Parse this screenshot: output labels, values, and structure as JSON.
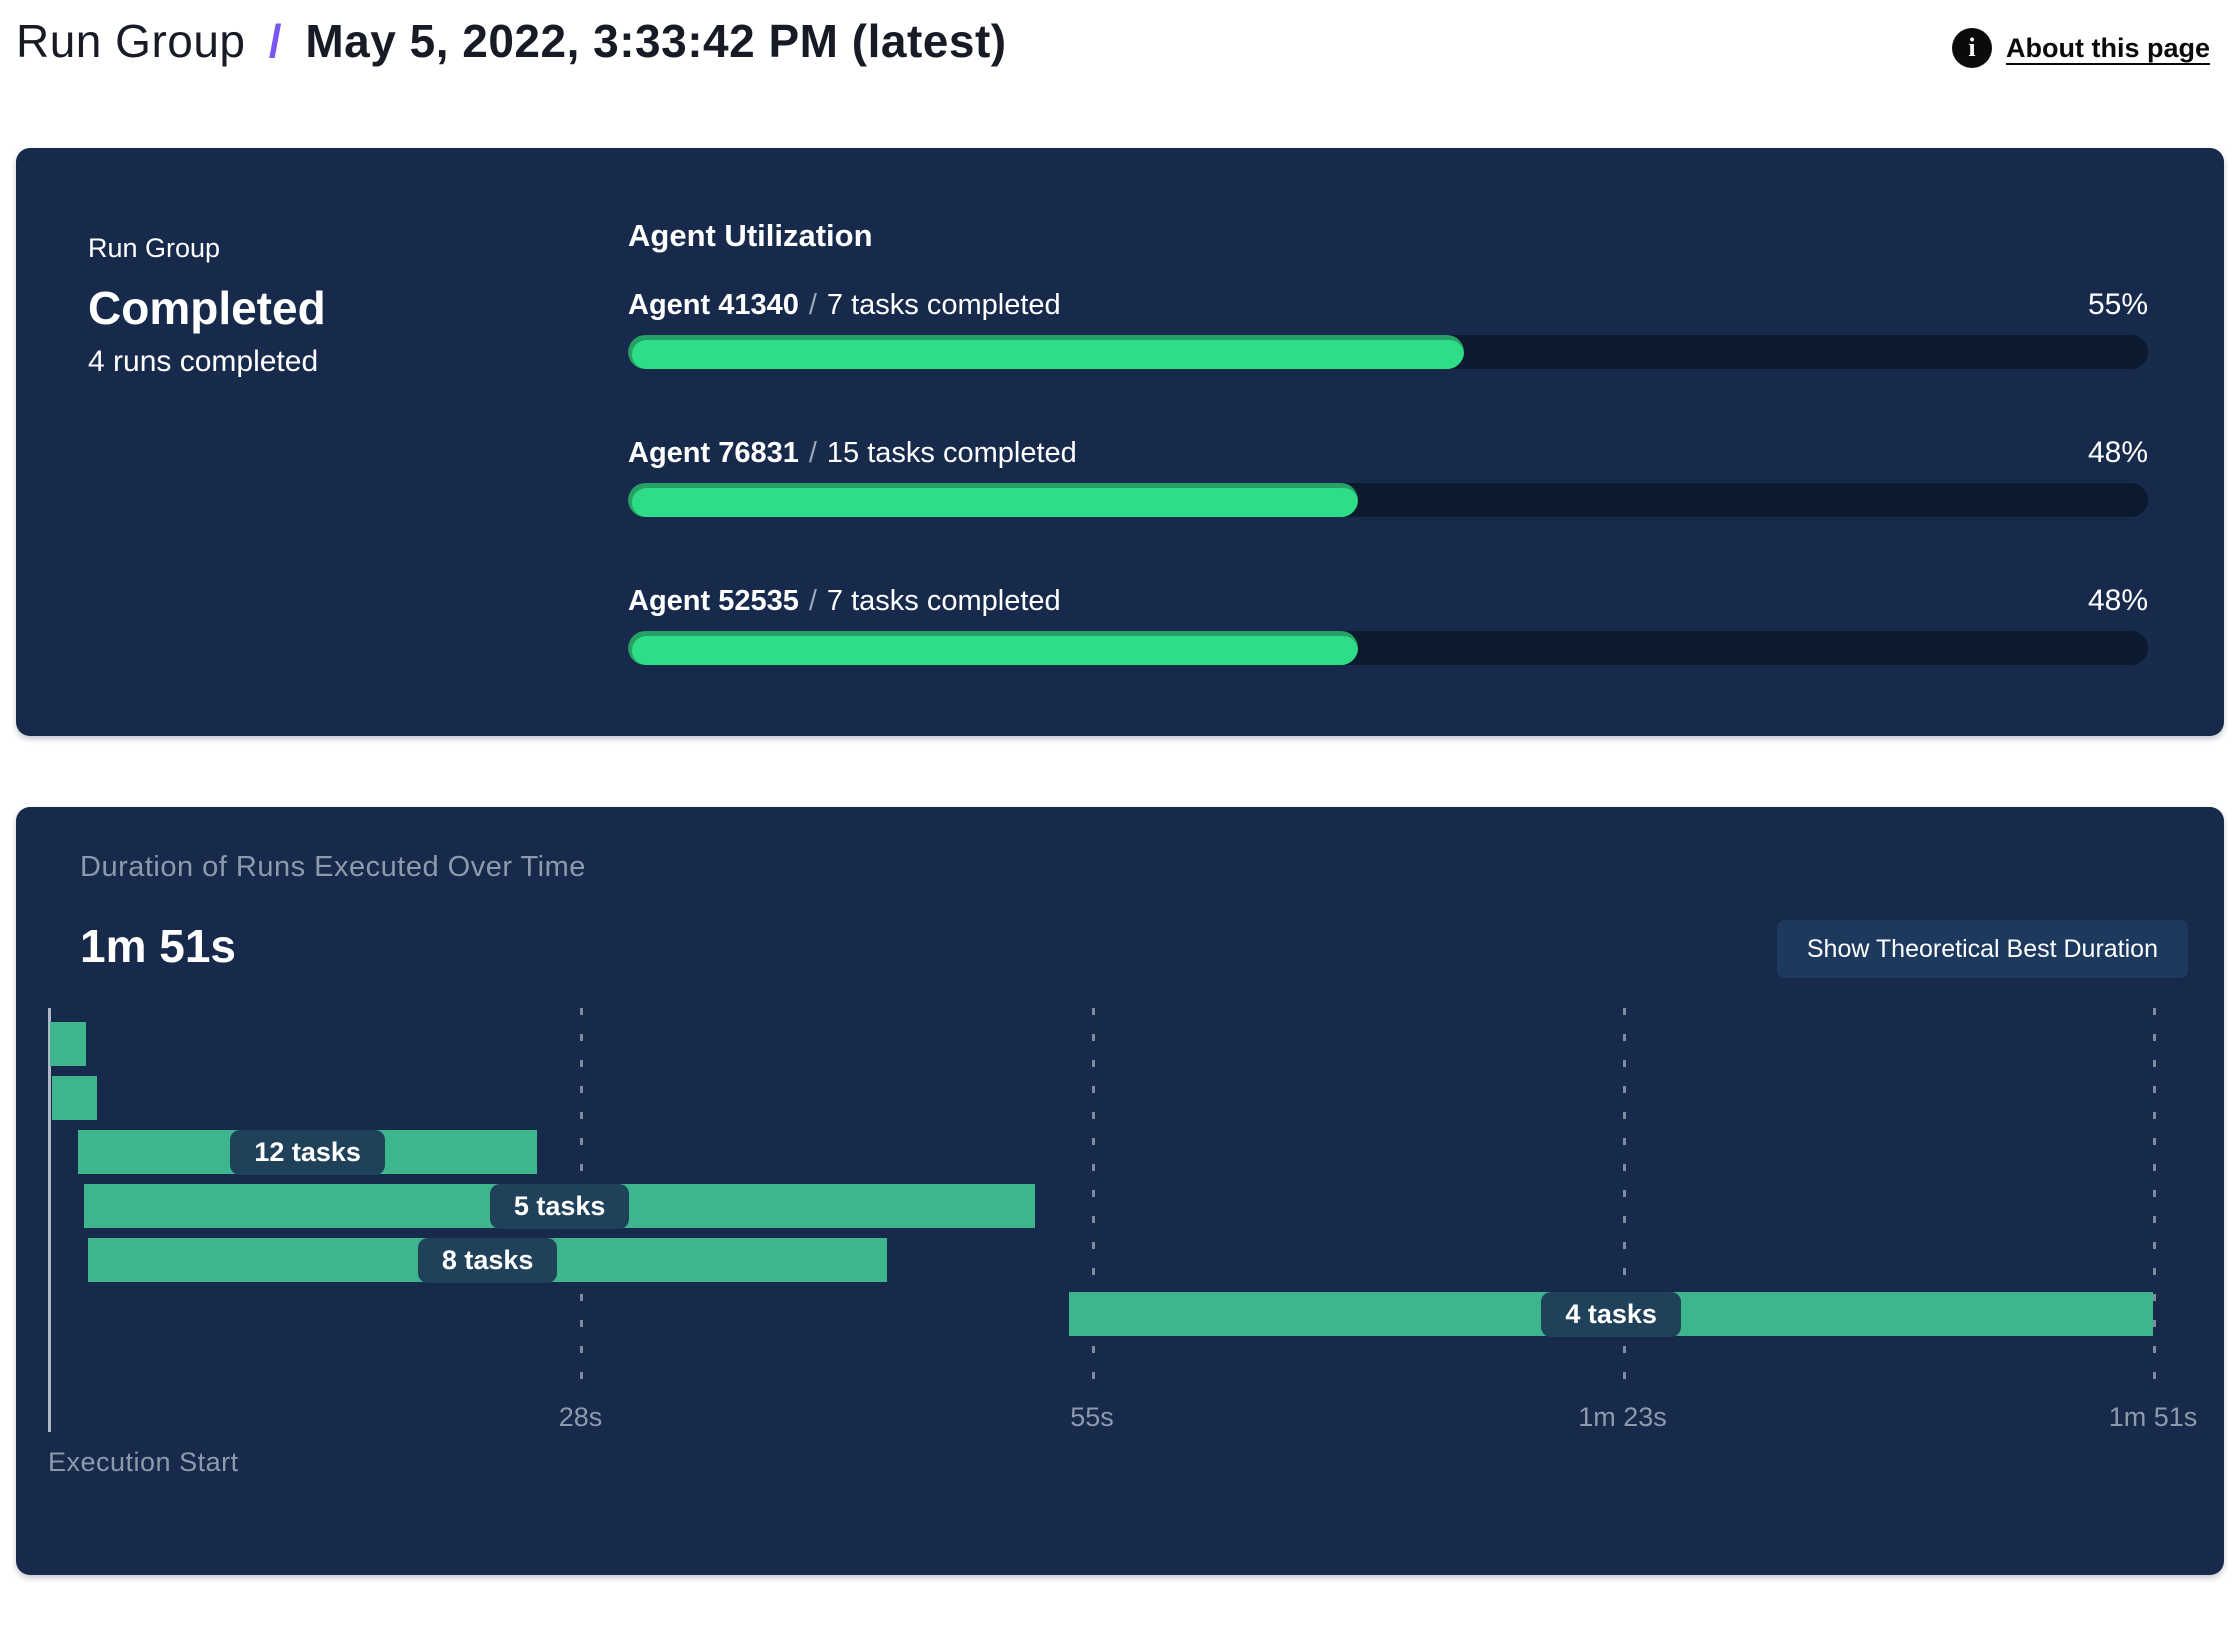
{
  "header": {
    "breadcrumb_root": "Run Group",
    "separator": "/",
    "title": "May 5, 2022, 3:33:42 PM (latest)",
    "about_link": "About this page",
    "info_icon_glyph": "i"
  },
  "summary": {
    "eyebrow": "Run Group",
    "status": "Completed",
    "subtext": "4 runs completed"
  },
  "utilization": {
    "title": "Agent Utilization",
    "agents": [
      {
        "name": "Agent 41340",
        "separator": "/",
        "tasks": "7 tasks completed",
        "percent": 55
      },
      {
        "name": "Agent 76831",
        "separator": "/",
        "tasks": "15 tasks completed",
        "percent": 48
      },
      {
        "name": "Agent 52535",
        "separator": "/",
        "tasks": "7 tasks completed",
        "percent": 48
      }
    ]
  },
  "duration_panel": {
    "title": "Duration of Runs Executed Over Time",
    "total_duration": "1m 51s",
    "button_label": "Show Theoretical Best Duration",
    "axis_caption": "Execution Start"
  },
  "chart_data": {
    "type": "gantt",
    "title": "Duration of Runs Executed Over Time",
    "total_duration": "1m 51s",
    "x_axis": {
      "max_seconds": 111,
      "ticks": [
        {
          "seconds": 28,
          "label": "28s"
        },
        {
          "seconds": 55,
          "label": "55s"
        },
        {
          "seconds": 83,
          "label": "1m 23s"
        },
        {
          "seconds": 111,
          "label": "1m 51s"
        }
      ]
    },
    "runs": [
      {
        "start_s": 0.0,
        "end_s": 1.9,
        "label": ""
      },
      {
        "start_s": 0.1,
        "end_s": 2.5,
        "label": ""
      },
      {
        "start_s": 1.5,
        "end_s": 25.7,
        "label": "12 tasks"
      },
      {
        "start_s": 1.8,
        "end_s": 52.0,
        "label": "5 tasks"
      },
      {
        "start_s": 2.0,
        "end_s": 44.2,
        "label": "8 tasks"
      },
      {
        "start_s": 53.8,
        "end_s": 111.0,
        "label": "4 tasks"
      }
    ]
  },
  "colors": {
    "panel_bg": "#172a4c",
    "accent_slash": "#7a57f2",
    "progress_fill": "#2edd87",
    "progress_fill_rim": "#27a064",
    "progress_track": "#0c1a30",
    "gantt_bar": "#3eb68d",
    "badge_bg": "#20415a",
    "button_bg": "#1d3a5e",
    "muted_text": "#8e9aac"
  }
}
